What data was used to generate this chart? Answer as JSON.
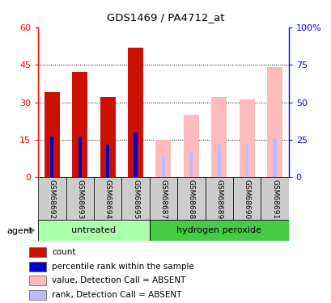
{
  "title": "GDS1469 / PA4712_at",
  "samples": [
    "GSM68692",
    "GSM68693",
    "GSM68694",
    "GSM68695",
    "GSM68687",
    "GSM68688",
    "GSM68689",
    "GSM68690",
    "GSM68691"
  ],
  "detection": [
    "P",
    "P",
    "P",
    "P",
    "A",
    "A",
    "A",
    "A",
    "A"
  ],
  "count_values": [
    34,
    42,
    32,
    52,
    0,
    0,
    0,
    0,
    0
  ],
  "rank_values": [
    27,
    27,
    22,
    30,
    0,
    0,
    0,
    0,
    0
  ],
  "absent_value": [
    0,
    0,
    0,
    0,
    15,
    25,
    32,
    31,
    44
  ],
  "absent_rank": [
    0,
    0,
    0,
    0,
    14,
    17,
    22,
    22,
    26
  ],
  "left_ylim": [
    0,
    60
  ],
  "left_yticks": [
    0,
    15,
    30,
    45,
    60
  ],
  "right_ylim": [
    0,
    100
  ],
  "right_yticks": [
    0,
    25,
    50,
    75,
    100
  ],
  "color_count": "#cc1100",
  "color_rank": "#0000cc",
  "color_absent_value": "#ffbbbb",
  "color_absent_rank": "#bbbbff",
  "color_group_light": "#aaffaa",
  "color_group_dark": "#44cc44",
  "color_tick_bg": "#cccccc",
  "agent_label": "agent",
  "group_labels": [
    "untreated",
    "hydrogen peroxide"
  ],
  "n_untreated": 4,
  "n_peroxide": 5,
  "legend_items": [
    {
      "label": "count",
      "color": "#cc1100"
    },
    {
      "label": "percentile rank within the sample",
      "color": "#0000cc"
    },
    {
      "label": "value, Detection Call = ABSENT",
      "color": "#ffbbbb"
    },
    {
      "label": "rank, Detection Call = ABSENT",
      "color": "#bbbbff"
    }
  ]
}
